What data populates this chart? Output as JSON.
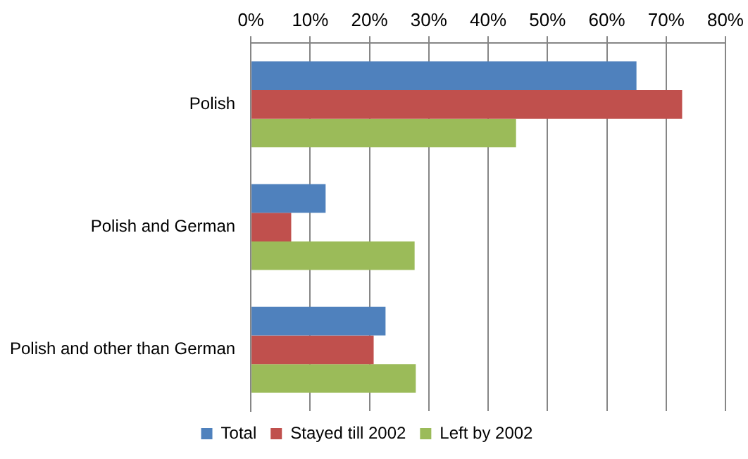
{
  "chart_data": {
    "type": "bar",
    "orientation": "horizontal",
    "categories": [
      "Polish",
      "Polish and German",
      "Polish and other than German"
    ],
    "series": [
      {
        "name": "Total",
        "color": "#4f81bd",
        "values": [
          65,
          12.6,
          22.7
        ]
      },
      {
        "name": "Stayed till 2002",
        "color": "#c0504d",
        "values": [
          72.7,
          6.8,
          20.7
        ]
      },
      {
        "name": "Left by 2002",
        "color": "#9bbb59",
        "values": [
          44.7,
          27.6,
          27.8
        ]
      }
    ],
    "xlim": [
      0,
      80
    ],
    "xticks": [
      {
        "value": 0,
        "label": "0%"
      },
      {
        "value": 10,
        "label": "10%"
      },
      {
        "value": 20,
        "label": "20%"
      },
      {
        "value": 30,
        "label": "30%"
      },
      {
        "value": 40,
        "label": "40%"
      },
      {
        "value": 50,
        "label": "50%"
      },
      {
        "value": 60,
        "label": "60%"
      },
      {
        "value": 70,
        "label": "70%"
      },
      {
        "value": 80,
        "label": "80%"
      }
    ],
    "grid": "x",
    "legend": "bottom"
  }
}
